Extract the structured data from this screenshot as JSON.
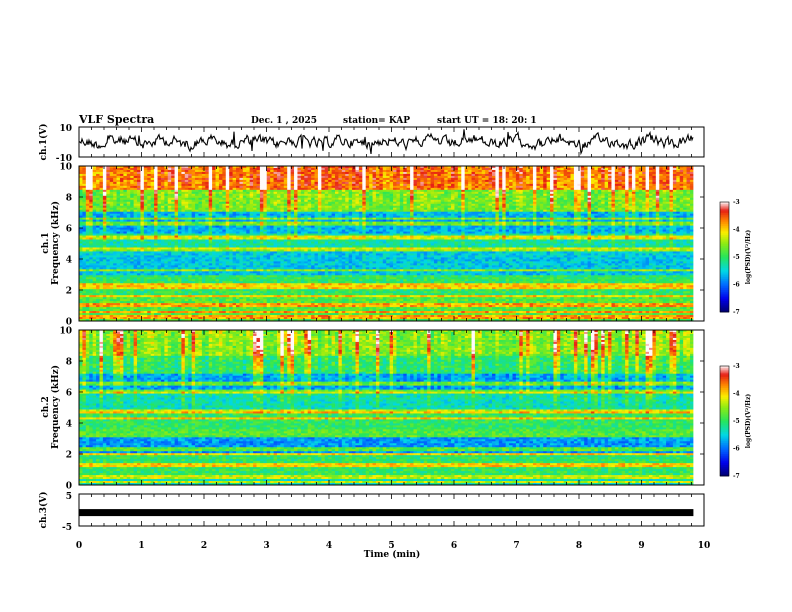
{
  "header": {
    "title": "VLF Spectra",
    "date": "Dec. 1 , 2025",
    "station": "station= KAP",
    "start_time": "start  UT =  18: 20: 1"
  },
  "chart_data": [
    {
      "type": "line",
      "name": "ch1-waveform",
      "ylabel": "ch.1(V)",
      "ylim": [
        -10,
        10
      ],
      "yticks": [
        "10",
        "-10"
      ],
      "xlim": [
        0,
        10
      ],
      "color": "#000000"
    },
    {
      "type": "heatmap",
      "name": "ch1-spectrogram",
      "ylabel": "ch.1\nFrequency (kHz)",
      "ylabel_line1": "ch.1",
      "ylabel_line2": "Frequency (kHz)",
      "ylim": [
        0,
        10
      ],
      "yticks": [
        "0",
        "2",
        "4",
        "6",
        "8",
        "10"
      ],
      "xlim": [
        0,
        9.83
      ],
      "colorbar": {
        "label": "log(PSD)(V²/Hz)",
        "range": [
          -7,
          -3
        ],
        "ticks": [
          "-3",
          "-4",
          "-5",
          "-6",
          "-7"
        ]
      }
    },
    {
      "type": "heatmap",
      "name": "ch2-spectrogram",
      "ylabel_line1": "ch.2",
      "ylabel_line2": "Frequency (kHz)",
      "ylim": [
        0,
        10
      ],
      "yticks": [
        "0",
        "2",
        "4",
        "6",
        "8",
        "10"
      ],
      "xlim": [
        0,
        9.83
      ],
      "colorbar": {
        "label": "log(PSD)(V²/Hz)",
        "range": [
          -7,
          -3
        ],
        "ticks": [
          "-3",
          "-4",
          "-5",
          "-6",
          "-7"
        ]
      }
    },
    {
      "type": "line",
      "name": "ch3-waveform",
      "ylabel": "ch.3(V)",
      "ylim": [
        -5,
        5
      ],
      "yticks": [
        "5",
        "-5"
      ],
      "level": -0.8,
      "xlim": [
        0,
        9.83
      ]
    }
  ],
  "xaxis": {
    "label": "Time  (min)",
    "ticks": [
      "0",
      "1",
      "2",
      "3",
      "4",
      "5",
      "6",
      "7",
      "8",
      "9",
      "10"
    ]
  }
}
